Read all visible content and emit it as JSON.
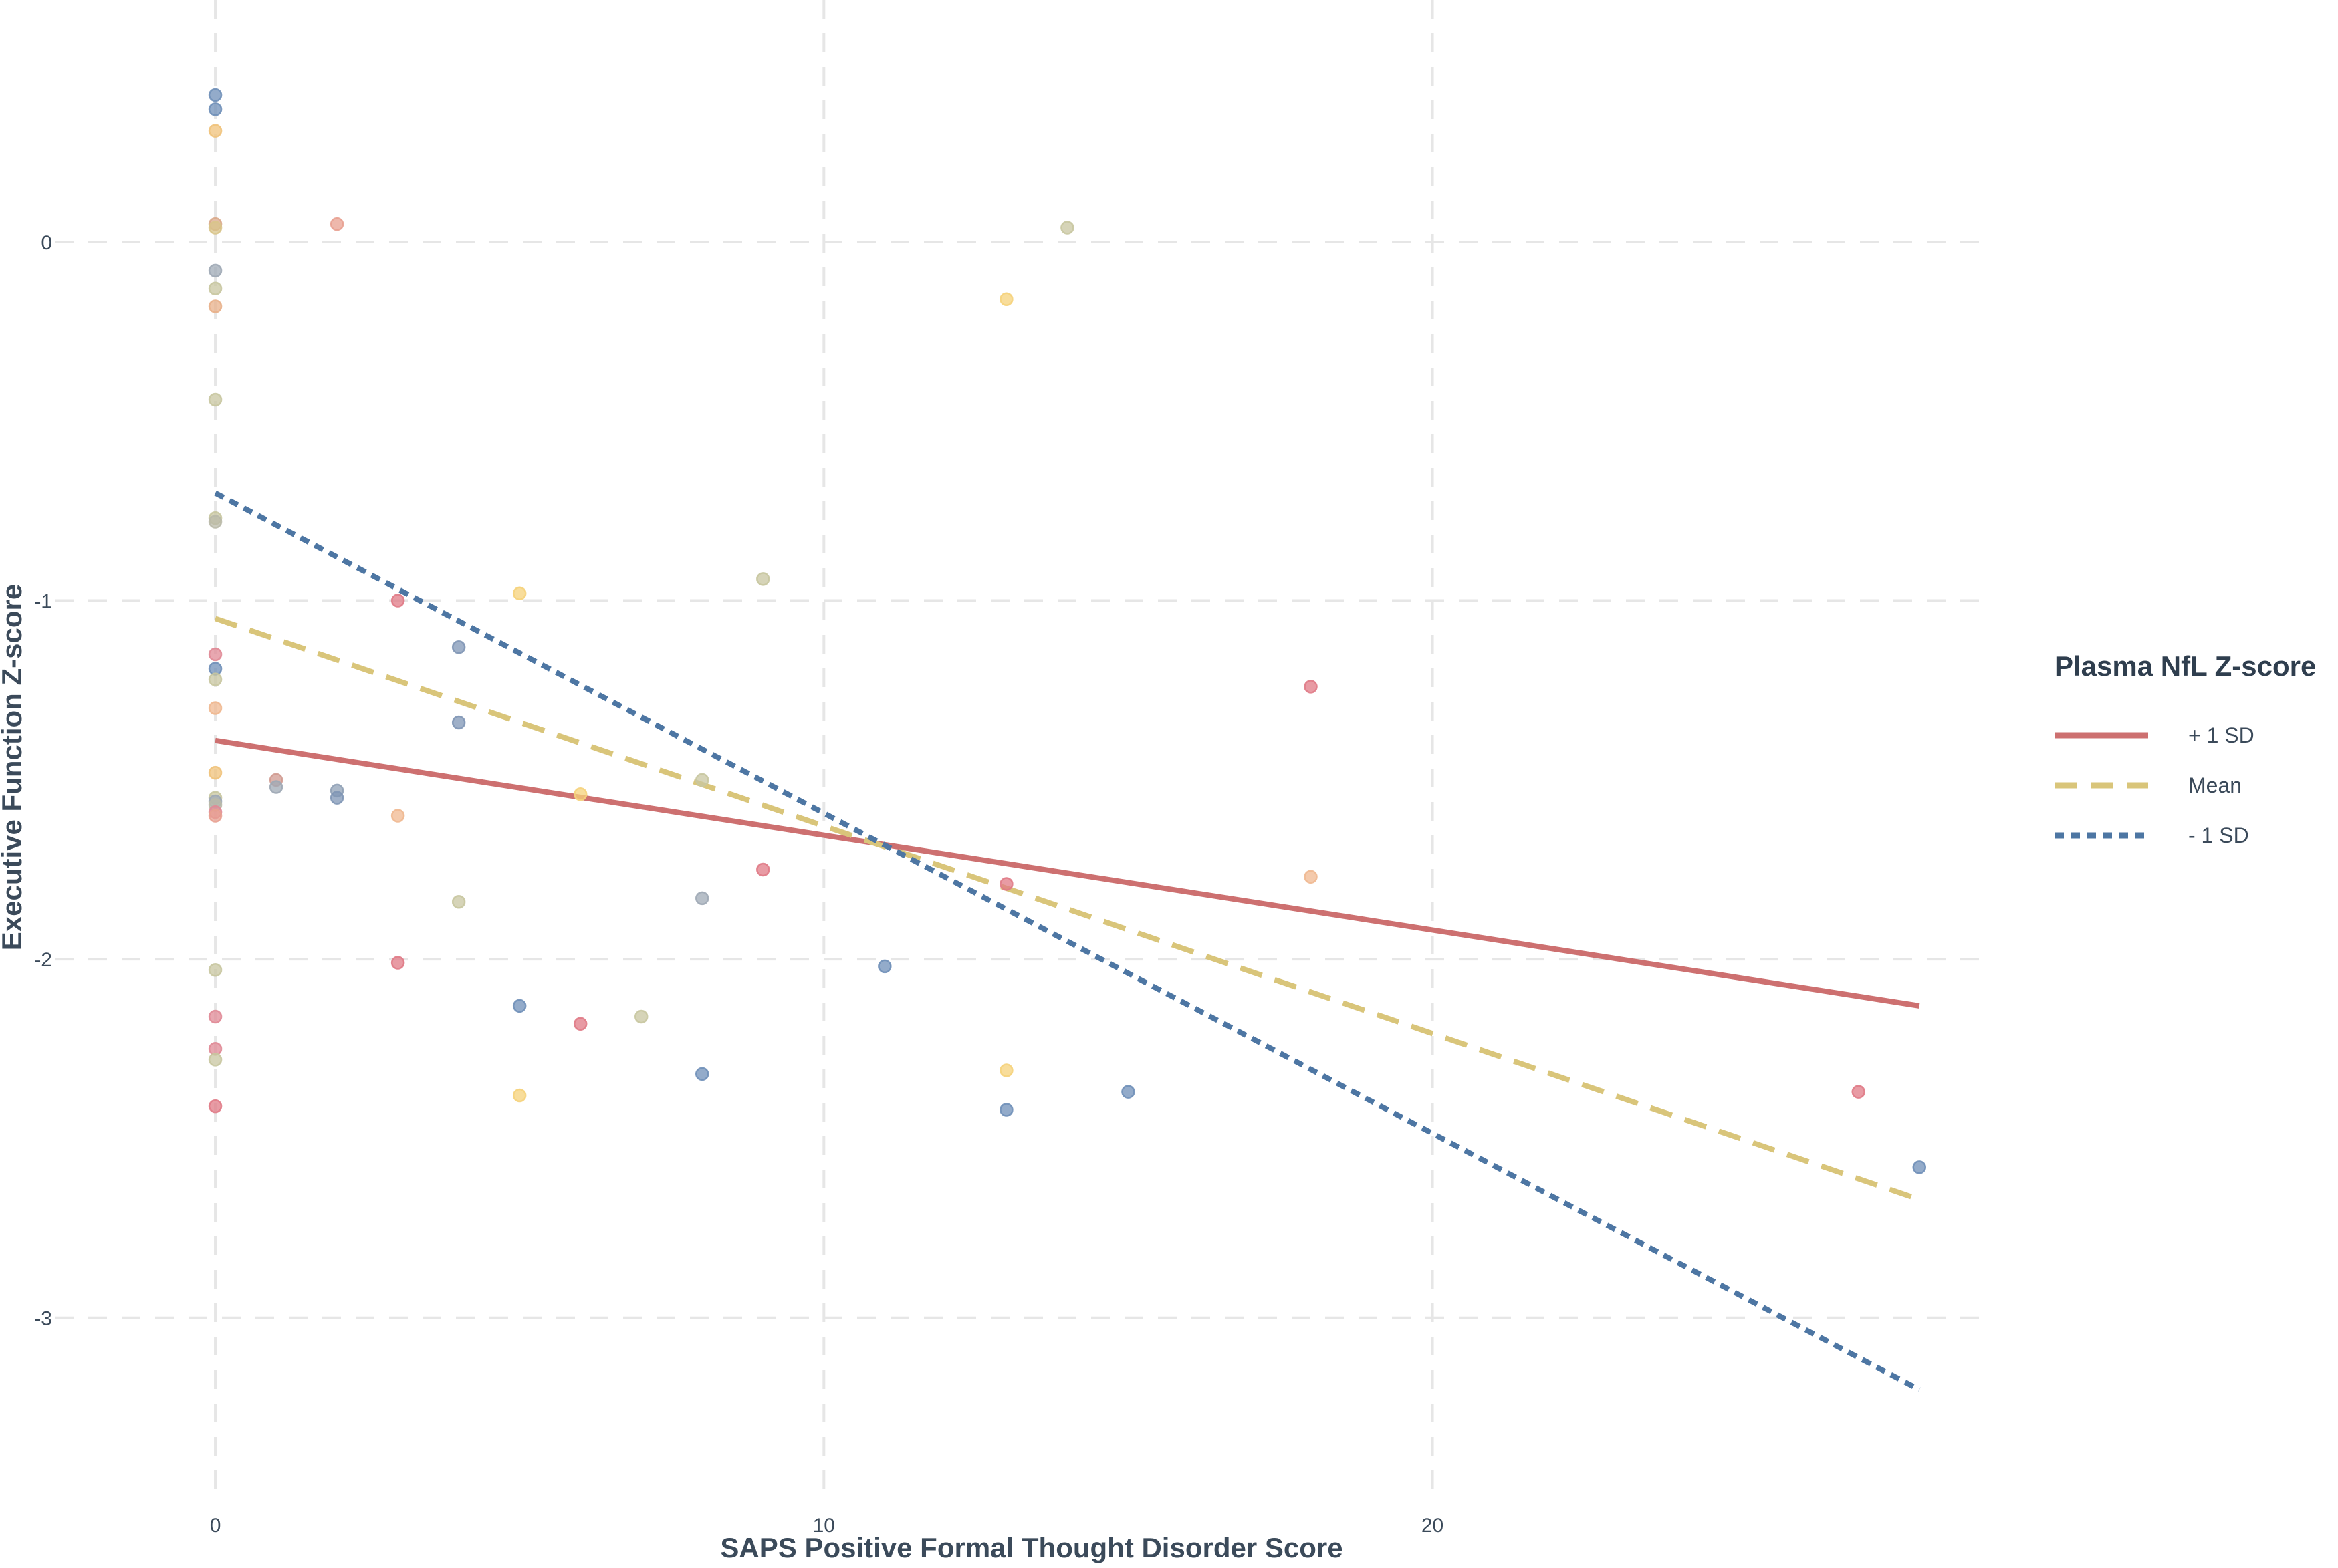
{
  "chart_data": {
    "type": "scatter",
    "title": "",
    "xlabel": "SAPS Positive Formal Thought Disorder Score",
    "ylabel": "Executive Function Z-score",
    "xlim": [
      -2,
      29.2
    ],
    "ylim": [
      -3.5,
      0.6
    ],
    "x_ticks": [
      0,
      10,
      20
    ],
    "y_ticks": [
      0,
      -1,
      -2,
      -3
    ],
    "x_tick_labels": [
      "0",
      "10",
      "20"
    ],
    "y_tick_labels": [
      "0",
      "-1",
      "-2",
      "-3"
    ],
    "grid": true,
    "legend": {
      "title": "Plasma NfL Z-score",
      "position": "right",
      "entries": [
        {
          "label": "+ 1 SD",
          "color": "#cd7070",
          "style": "solid"
        },
        {
          "label": "Mean",
          "color": "#d9c57a",
          "style": "dashed"
        },
        {
          "label": "- 1 SD",
          "color": "#4d76a3",
          "style": "dotted"
        }
      ]
    },
    "lines": [
      {
        "name": "+ 1 SD",
        "color": "#cd7070",
        "style": "solid",
        "x": [
          0,
          28
        ],
        "y": [
          -1.39,
          -2.13
        ]
      },
      {
        "name": "Mean",
        "color": "#d9c57a",
        "style": "dashed",
        "x": [
          0,
          28
        ],
        "y": [
          -1.05,
          -2.67
        ]
      },
      {
        "name": "- 1 SD",
        "color": "#4d76a3",
        "style": "dotted",
        "x": [
          0,
          28
        ],
        "y": [
          -0.7,
          -3.2
        ]
      }
    ],
    "points": [
      {
        "x": 0,
        "y": 0.41,
        "color": "#6f8fb8"
      },
      {
        "x": 0,
        "y": 0.37,
        "color": "#6f8fb8"
      },
      {
        "x": 0,
        "y": 0.31,
        "color": "#f0c27a"
      },
      {
        "x": 0,
        "y": 0.05,
        "color": "#d9a88a"
      },
      {
        "x": 0,
        "y": 0.04,
        "color": "#d8c48a"
      },
      {
        "x": 0,
        "y": -0.08,
        "color": "#9fa9b5"
      },
      {
        "x": 0,
        "y": -0.13,
        "color": "#c8c6a0"
      },
      {
        "x": 0,
        "y": -0.18,
        "color": "#e8b08a"
      },
      {
        "x": 0,
        "y": -0.44,
        "color": "#c8c6a0"
      },
      {
        "x": 0,
        "y": -0.77,
        "color": "#c8c6a0"
      },
      {
        "x": 0,
        "y": -0.78,
        "color": "#b9b9a8"
      },
      {
        "x": 0,
        "y": -1.15,
        "color": "#e08a96"
      },
      {
        "x": 0,
        "y": -1.19,
        "color": "#6f8fb8"
      },
      {
        "x": 0,
        "y": -1.22,
        "color": "#c8c6a0"
      },
      {
        "x": 0,
        "y": -1.3,
        "color": "#f0b890"
      },
      {
        "x": 0,
        "y": -1.48,
        "color": "#f0c27a"
      },
      {
        "x": 0,
        "y": -1.55,
        "color": "#c8c6a0"
      },
      {
        "x": 0,
        "y": -1.56,
        "color": "#9fa9b5"
      },
      {
        "x": 0,
        "y": -1.57,
        "color": "#b9b9a8"
      },
      {
        "x": 0,
        "y": -1.59,
        "color": "#e08a96"
      },
      {
        "x": 0,
        "y": -1.6,
        "color": "#e8a090"
      },
      {
        "x": 0,
        "y": -2.03,
        "color": "#c8c6a0"
      },
      {
        "x": 0,
        "y": -2.16,
        "color": "#e08a96"
      },
      {
        "x": 0,
        "y": -2.25,
        "color": "#e08a96"
      },
      {
        "x": 0,
        "y": -2.28,
        "color": "#c8c6a0"
      },
      {
        "x": 0,
        "y": -2.41,
        "color": "#e07a86"
      },
      {
        "x": 1,
        "y": -1.5,
        "color": "#d09a90"
      },
      {
        "x": 1,
        "y": -1.52,
        "color": "#9fa9b5"
      },
      {
        "x": 2,
        "y": 0.05,
        "color": "#e8a090"
      },
      {
        "x": 2,
        "y": -1.53,
        "color": "#8fa0b5"
      },
      {
        "x": 2,
        "y": -1.55,
        "color": "#7f96b5"
      },
      {
        "x": 3,
        "y": -1.0,
        "color": "#e07a86"
      },
      {
        "x": 3,
        "y": -1.6,
        "color": "#f0b890"
      },
      {
        "x": 3,
        "y": -2.01,
        "color": "#e07a86"
      },
      {
        "x": 4,
        "y": -1.13,
        "color": "#7f96b5"
      },
      {
        "x": 4,
        "y": -1.34,
        "color": "#7f96b5"
      },
      {
        "x": 4,
        "y": -1.84,
        "color": "#c8c6a0"
      },
      {
        "x": 5,
        "y": -0.98,
        "color": "#f5d27a"
      },
      {
        "x": 5,
        "y": -2.13,
        "color": "#6f8fb8"
      },
      {
        "x": 5,
        "y": -2.38,
        "color": "#f5d27a"
      },
      {
        "x": 6,
        "y": -1.54,
        "color": "#f5d27a"
      },
      {
        "x": 6,
        "y": -2.18,
        "color": "#e07a86"
      },
      {
        "x": 7,
        "y": -2.16,
        "color": "#c8c6a0"
      },
      {
        "x": 8,
        "y": -1.5,
        "color": "#c8c6a0"
      },
      {
        "x": 8,
        "y": -1.83,
        "color": "#9fa9b5"
      },
      {
        "x": 8,
        "y": -2.32,
        "color": "#6f8fb8"
      },
      {
        "x": 9,
        "y": -0.94,
        "color": "#c8c6a0"
      },
      {
        "x": 9,
        "y": -1.75,
        "color": "#e07a86"
      },
      {
        "x": 11,
        "y": -2.02,
        "color": "#6f8fb8"
      },
      {
        "x": 13,
        "y": -0.16,
        "color": "#f5d27a"
      },
      {
        "x": 13,
        "y": -1.79,
        "color": "#e07a86"
      },
      {
        "x": 13,
        "y": -2.31,
        "color": "#f5d27a"
      },
      {
        "x": 13,
        "y": -2.42,
        "color": "#6f8fb8"
      },
      {
        "x": 14,
        "y": 0.04,
        "color": "#c8c6a0"
      },
      {
        "x": 15,
        "y": -2.37,
        "color": "#6f8fb8"
      },
      {
        "x": 18,
        "y": -1.24,
        "color": "#e07a86"
      },
      {
        "x": 18,
        "y": -1.77,
        "color": "#f0b890"
      },
      {
        "x": 27,
        "y": -2.37,
        "color": "#e07a86"
      },
      {
        "x": 28,
        "y": -2.58,
        "color": "#6f8fb8"
      }
    ]
  }
}
